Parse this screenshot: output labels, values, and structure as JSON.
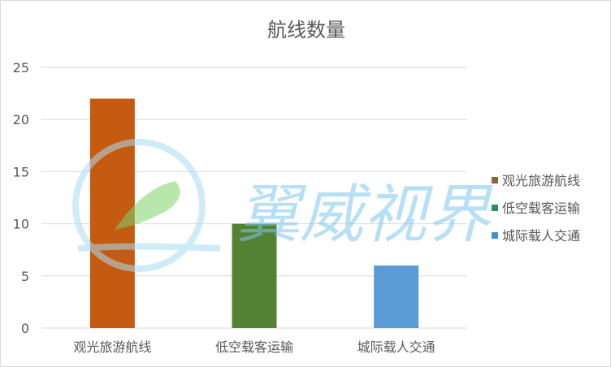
{
  "chart_data": {
    "type": "bar",
    "title": "航线数量",
    "categories": [
      "观光旅游航线",
      "低空载客运输",
      "城际载人交通"
    ],
    "values": [
      22,
      10,
      6
    ],
    "colors": [
      "#c55a11",
      "#548235",
      "#5b9bd5"
    ],
    "ylim": [
      0,
      25
    ],
    "yticks": [
      0,
      5,
      10,
      15,
      20,
      25
    ],
    "grid": true,
    "legend_position": "right",
    "legend": [
      {
        "label": "观光旅游航线",
        "color": "#8c6239"
      },
      {
        "label": "低空载客运输",
        "color": "#2e8b6a"
      },
      {
        "label": "城际载人交通",
        "color": "#3f8fd6"
      }
    ]
  },
  "watermark": {
    "text": "翼威视界",
    "color": "#7ec8ef"
  }
}
